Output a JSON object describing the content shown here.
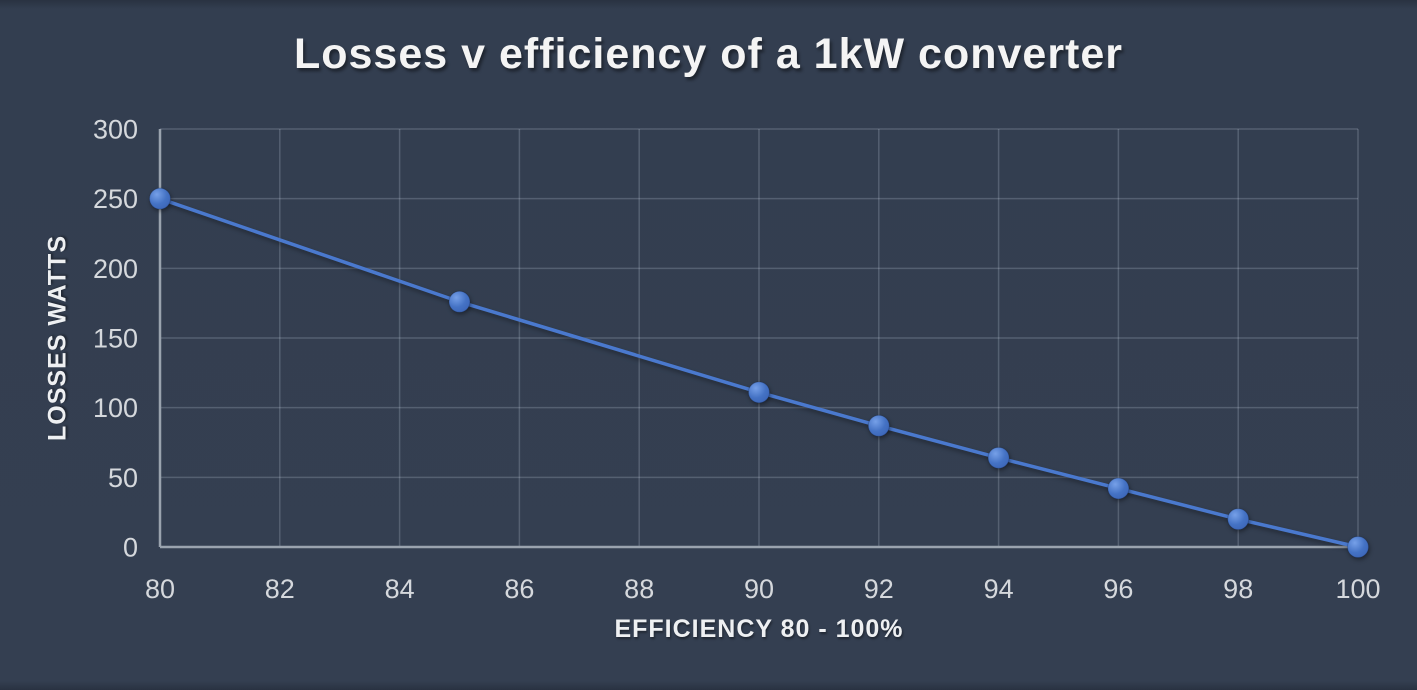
{
  "page": {
    "title": "Losses v efficiency of a 1kW converter"
  },
  "chart_data": {
    "type": "line",
    "title": "Losses v efficiency of a 1kW converter",
    "xlabel": "EFFICIENCY 80 - 100%",
    "ylabel": "LOSSES WATTS",
    "x": [
      80,
      85,
      90,
      92,
      94,
      96,
      98,
      100
    ],
    "y": [
      250,
      176,
      111,
      87,
      64,
      42,
      20,
      0
    ],
    "x_ticks": [
      80,
      82,
      84,
      86,
      88,
      90,
      92,
      94,
      96,
      98,
      100
    ],
    "y_ticks": [
      0,
      50,
      100,
      150,
      200,
      250,
      300
    ],
    "xlim": [
      80,
      100
    ],
    "ylim": [
      0,
      300
    ],
    "grid": true,
    "legend": false,
    "marker": "circle",
    "colors": {
      "background": "#333e50",
      "edge_band": "#293241",
      "line": "#4a79ce",
      "marker_fill": "#4472c4",
      "marker_highlight": "#76a0e8",
      "marker_shade": "#3a63b5",
      "gridline": "rgba(222,231,245,0.20)",
      "axis_line": "#9aa3ae",
      "tick_label": "#d5d8dc",
      "title": "#f4f4f4"
    }
  }
}
